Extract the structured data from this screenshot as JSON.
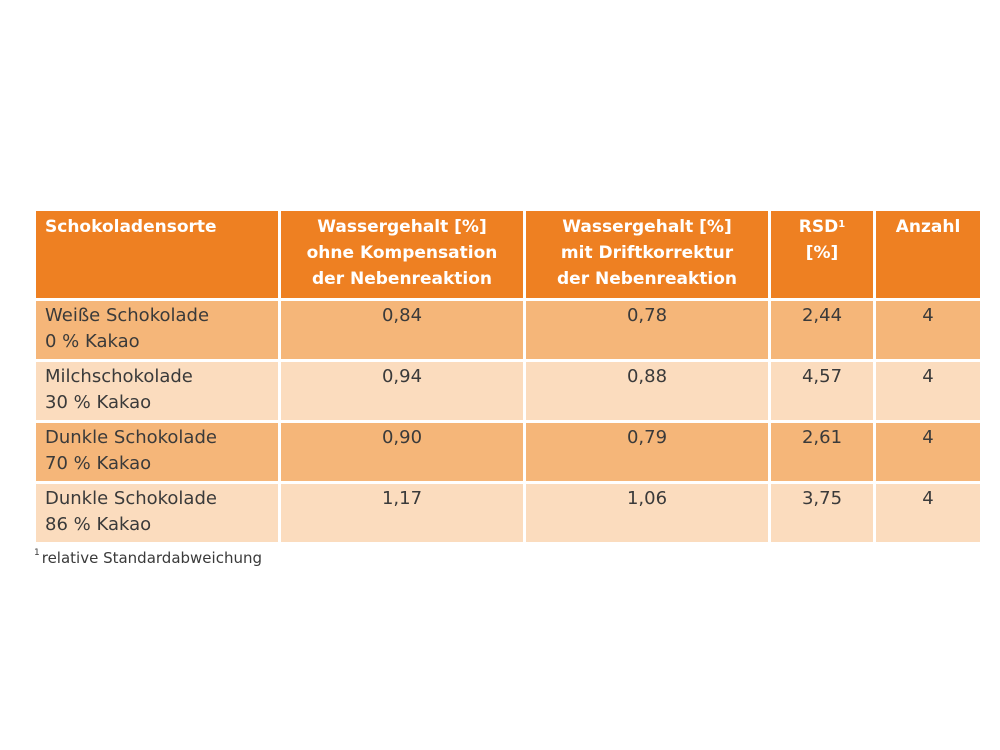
{
  "table": {
    "headers": [
      {
        "lines": [
          "Schokoladensorte"
        ]
      },
      {
        "lines": [
          "Wassergehalt [%]",
          "ohne Kompensation",
          "der Nebenreaktion"
        ]
      },
      {
        "lines": [
          "Wassergehalt [%]",
          "mit Driftkorrektur",
          "der Nebenreaktion"
        ]
      },
      {
        "lines": [
          "RSD",
          "[%]"
        ],
        "sup": "1"
      },
      {
        "lines": [
          "Anzahl"
        ]
      }
    ],
    "rows": [
      {
        "sorte": [
          "Weiße Schokolade",
          "0 % Kakao"
        ],
        "ohne": "0,84",
        "mit": "0,78",
        "rsd": "2,44",
        "anzahl": "4"
      },
      {
        "sorte": [
          "Milchschokolade",
          "30 % Kakao"
        ],
        "ohne": "0,94",
        "mit": "0,88",
        "rsd": "4,57",
        "anzahl": "4"
      },
      {
        "sorte": [
          "Dunkle Schokolade",
          "70 % Kakao"
        ],
        "ohne": "0,90",
        "mit": "0,79",
        "rsd": "2,61",
        "anzahl": "4"
      },
      {
        "sorte": [
          "Dunkle Schokolade",
          "86 % Kakao"
        ],
        "ohne": "1,17",
        "mit": "1,06",
        "rsd": "3,75",
        "anzahl": "4"
      }
    ]
  },
  "footnote": {
    "marker": "1",
    "text": "relative Standardabweichung"
  },
  "colors": {
    "header_bg": "#ee8022",
    "row_dark": "#f5b679",
    "row_light": "#fbdcbe",
    "header_text": "#ffffff",
    "body_text": "#3a3a3a"
  }
}
